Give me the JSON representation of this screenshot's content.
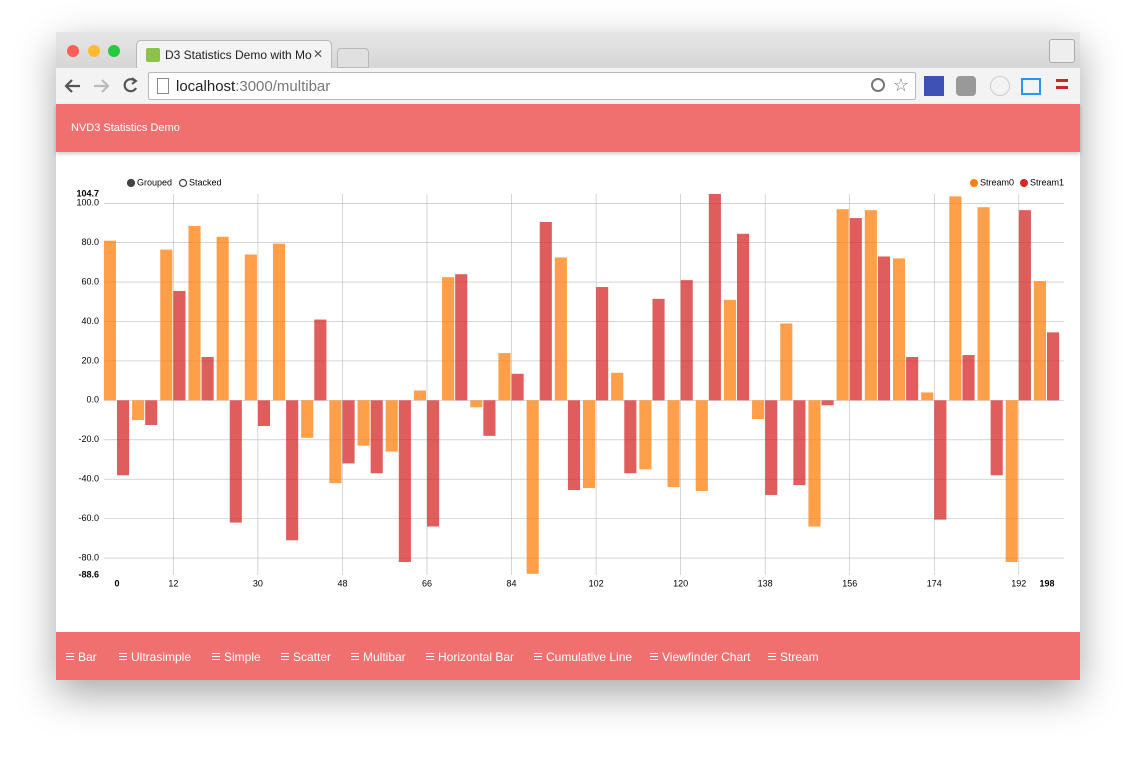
{
  "browser": {
    "tab_title": "D3 Statistics Demo with Mo",
    "url_host": "localhost",
    "url_path": ":3000/multibar"
  },
  "header": {
    "title": "NVD3 Statistics Demo"
  },
  "nav": [
    "Bar",
    "Ultrasimple",
    "Simple",
    "Scatter",
    "Multibar",
    "Horizontal Bar",
    "Cumulative Line",
    "Viewfinder Chart",
    "Stream"
  ],
  "chart_data": {
    "type": "bar",
    "controls": [
      "Grouped",
      "Stacked"
    ],
    "selected_control": 0,
    "x": [
      0,
      6,
      12,
      18,
      24,
      30,
      36,
      42,
      48,
      54,
      60,
      66,
      72,
      78,
      84,
      90,
      96,
      102,
      108,
      114,
      120,
      126,
      132,
      138,
      144,
      150,
      156,
      162,
      168,
      174,
      180,
      186,
      192,
      198
    ],
    "series": [
      {
        "name": "Stream0",
        "color": "#ff7f0e",
        "values": [
          81,
          -10,
          76.5,
          88.5,
          83,
          74,
          79.5,
          -19,
          -42,
          -23,
          -26,
          5,
          62.5,
          -3.5,
          24,
          -88,
          72.5,
          -44.5,
          14,
          -35,
          -44,
          -46,
          51,
          -9.5,
          39,
          -64,
          97,
          96.5,
          72,
          4,
          103.5,
          98,
          -82,
          60.5
        ]
      },
      {
        "name": "Stream1",
        "color": "#d62728",
        "values": [
          -38,
          -12.5,
          55.5,
          22,
          -62,
          -13,
          -71,
          41,
          -32,
          -37,
          -82,
          -64,
          64,
          -18,
          13.5,
          90.5,
          -45.5,
          57.5,
          -37,
          51.5,
          61,
          104.7,
          84.5,
          -48,
          -43,
          -2.5,
          92.5,
          73,
          22,
          -60.5,
          23,
          -38,
          96.5,
          34.5
        ]
      }
    ],
    "xlim": [
      0,
      198
    ],
    "xticks": [
      0,
      12,
      30,
      48,
      66,
      84,
      102,
      120,
      138,
      156,
      174,
      192,
      198
    ],
    "ylim": [
      -88.6,
      104.7
    ],
    "yticks": [
      -88.6,
      {
        "value": -80,
        "label": "-80.0"
      },
      {
        "value": -60,
        "label": "-60.0"
      },
      {
        "value": -40,
        "label": "-40.0"
      },
      {
        "value": -20,
        "label": "-20.0"
      },
      {
        "value": 0,
        "label": "0.0"
      },
      {
        "value": 20,
        "label": "20.0"
      },
      {
        "value": 40,
        "label": "40.0"
      },
      {
        "value": 60,
        "label": "60.0"
      },
      {
        "value": 80,
        "label": "80.0"
      },
      {
        "value": 100,
        "label": "100.0"
      },
      104.7
    ],
    "grid": true,
    "legend": "top-right"
  }
}
